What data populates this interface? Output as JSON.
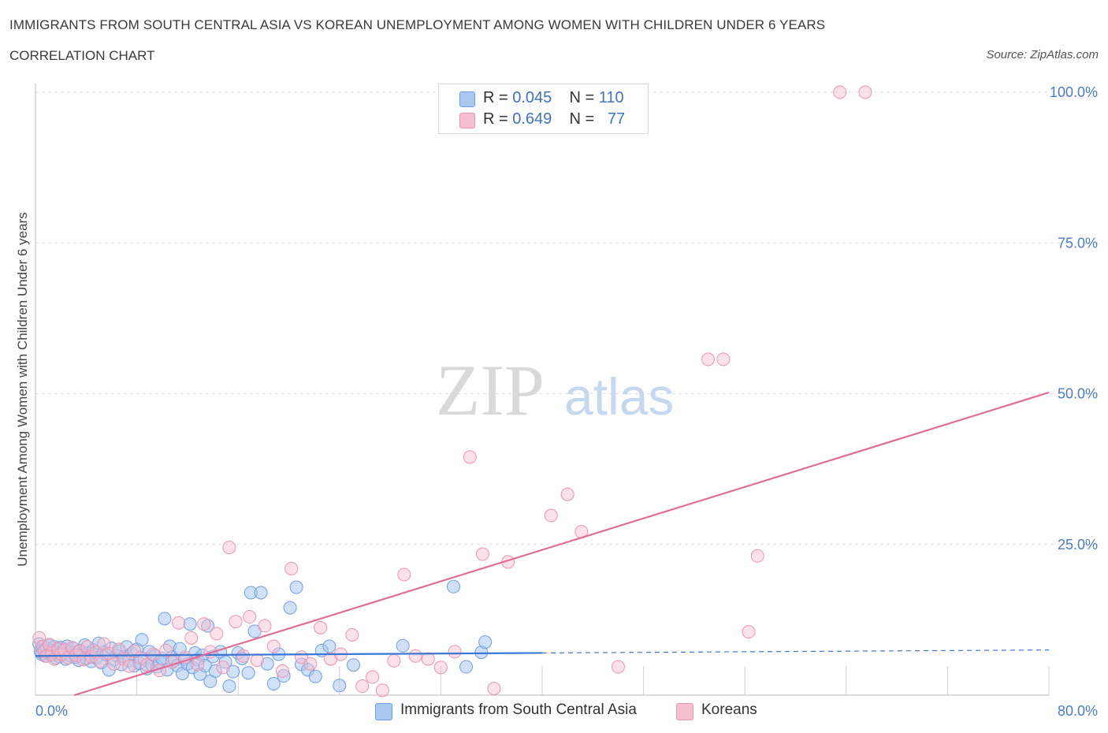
{
  "header": {
    "title": "IMMIGRANTS FROM SOUTH CENTRAL ASIA VS KOREAN UNEMPLOYMENT AMONG WOMEN WITH CHILDREN UNDER 6 YEARS",
    "subtitle": "CORRELATION CHART",
    "source": "Source: ZipAtlas.com"
  },
  "legend": {
    "r_label": "R =",
    "n_label": "N =",
    "rows": [
      {
        "r": "0.045",
        "n": "110"
      },
      {
        "r": "0.649",
        "n": "77"
      }
    ]
  },
  "watermark": {
    "zip": "ZIP",
    "atlas": "atlas"
  },
  "colors": {
    "blue_fill": "#a9c8f0",
    "blue_stroke": "#6e9fe0",
    "blue_line": "#3a78d4",
    "pink_fill": "#f6bfd0",
    "pink_stroke": "#ec93b0",
    "pink_line": "#e26b93",
    "tick_text": "#4a7cc9",
    "grid": "#e2e2e2"
  },
  "chart_data": {
    "type": "scatter",
    "title": "IMMIGRANTS FROM SOUTH CENTRAL ASIA VS KOREAN UNEMPLOYMENT AMONG WOMEN WITH CHILDREN UNDER 6 YEARS",
    "xlabel": "",
    "ylabel": "Unemployment Among Women with Children Under 6 years",
    "xlim": [
      0,
      80
    ],
    "ylim": [
      0,
      100
    ],
    "x_tick_labels": [
      "0.0%",
      "80.0%"
    ],
    "y_tick_values": [
      25,
      50,
      75,
      100
    ],
    "y_tick_labels": [
      "25.0%",
      "50.0%",
      "75.0%",
      "100.0%"
    ],
    "grid": "horizontal dashed",
    "legend_position": "top-center",
    "series": [
      {
        "name": "Immigrants from South Central Asia",
        "color": "#a9c8f0",
        "r": 0.045,
        "n": 110,
        "trend": {
          "x": [
            0,
            40
          ],
          "y": [
            6.5,
            7.0
          ],
          "dashed_extension_to_x": 80,
          "dashed_end_y": 7.5
        },
        "points": [
          [
            0.3,
            8.5
          ],
          [
            0.4,
            7.2
          ],
          [
            0.5,
            6.8
          ],
          [
            0.6,
            8.0
          ],
          [
            0.7,
            7.5
          ],
          [
            0.8,
            6.5
          ],
          [
            0.9,
            7.8
          ],
          [
            1.0,
            6.9
          ],
          [
            1.1,
            8.2
          ],
          [
            1.2,
            7.1
          ],
          [
            1.3,
            6.6
          ],
          [
            1.4,
            7.4
          ],
          [
            1.5,
            8.0
          ],
          [
            1.6,
            6.2
          ],
          [
            1.7,
            7.0
          ],
          [
            1.8,
            7.6
          ],
          [
            1.9,
            6.4
          ],
          [
            2.0,
            7.9
          ],
          [
            2.1,
            6.7
          ],
          [
            2.2,
            7.3
          ],
          [
            2.4,
            6.0
          ],
          [
            2.5,
            8.1
          ],
          [
            2.7,
            7.2
          ],
          [
            2.8,
            6.5
          ],
          [
            3.0,
            7.7
          ],
          [
            3.2,
            6.3
          ],
          [
            3.4,
            5.8
          ],
          [
            3.5,
            7.4
          ],
          [
            3.7,
            6.9
          ],
          [
            3.9,
            8.3
          ],
          [
            4.0,
            6.1
          ],
          [
            4.2,
            7.0
          ],
          [
            4.4,
            5.6
          ],
          [
            4.6,
            7.5
          ],
          [
            4.8,
            6.2
          ],
          [
            5.0,
            8.6
          ],
          [
            5.2,
            5.4
          ],
          [
            5.4,
            7.1
          ],
          [
            5.6,
            6.7
          ],
          [
            5.8,
            4.2
          ],
          [
            6.0,
            7.8
          ],
          [
            6.2,
            5.9
          ],
          [
            6.4,
            6.6
          ],
          [
            6.6,
            7.3
          ],
          [
            6.8,
            5.1
          ],
          [
            7.0,
            6.4
          ],
          [
            7.2,
            8.0
          ],
          [
            7.4,
            5.7
          ],
          [
            7.6,
            6.9
          ],
          [
            7.8,
            4.9
          ],
          [
            8.0,
            7.6
          ],
          [
            8.2,
            5.3
          ],
          [
            8.4,
            9.2
          ],
          [
            8.6,
            6.0
          ],
          [
            8.8,
            4.4
          ],
          [
            9.0,
            7.2
          ],
          [
            9.2,
            5.0
          ],
          [
            9.4,
            6.5
          ],
          [
            9.6,
            4.7
          ],
          [
            9.8,
            5.5
          ],
          [
            10.0,
            6.1
          ],
          [
            10.2,
            12.7
          ],
          [
            10.4,
            4.2
          ],
          [
            10.6,
            8.1
          ],
          [
            10.8,
            6.3
          ],
          [
            11.0,
            5.8
          ],
          [
            11.2,
            4.9
          ],
          [
            11.4,
            7.7
          ],
          [
            11.6,
            3.6
          ],
          [
            11.8,
            6.0
          ],
          [
            12.0,
            5.2
          ],
          [
            12.2,
            11.8
          ],
          [
            12.4,
            4.6
          ],
          [
            12.6,
            7.0
          ],
          [
            12.8,
            5.9
          ],
          [
            13.0,
            3.5
          ],
          [
            13.2,
            6.6
          ],
          [
            13.4,
            4.9
          ],
          [
            13.6,
            11.5
          ],
          [
            13.8,
            2.3
          ],
          [
            14.0,
            6.4
          ],
          [
            14.2,
            4.0
          ],
          [
            14.6,
            7.2
          ],
          [
            15.0,
            5.5
          ],
          [
            15.3,
            1.5
          ],
          [
            15.6,
            3.9
          ],
          [
            16.0,
            7.0
          ],
          [
            16.3,
            6.1
          ],
          [
            16.8,
            3.7
          ],
          [
            17.0,
            17.0
          ],
          [
            17.3,
            10.6
          ],
          [
            17.8,
            17.0
          ],
          [
            18.3,
            5.2
          ],
          [
            18.8,
            1.9
          ],
          [
            19.2,
            6.8
          ],
          [
            19.6,
            3.2
          ],
          [
            20.1,
            14.5
          ],
          [
            20.6,
            17.9
          ],
          [
            21.0,
            5.1
          ],
          [
            21.5,
            4.2
          ],
          [
            22.1,
            3.1
          ],
          [
            22.6,
            7.4
          ],
          [
            23.2,
            8.1
          ],
          [
            24.0,
            1.6
          ],
          [
            25.1,
            5.0
          ],
          [
            29.0,
            8.2
          ],
          [
            33.0,
            18.0
          ],
          [
            34.0,
            4.7
          ],
          [
            35.2,
            7.1
          ],
          [
            35.5,
            8.8
          ]
        ]
      },
      {
        "name": "Koreans",
        "color": "#f6bfd0",
        "r": 0.649,
        "n": 77,
        "trend": {
          "x": [
            0,
            80
          ],
          "y": [
            -2.0,
            50.2
          ]
        },
        "points": [
          [
            0.3,
            9.5
          ],
          [
            0.5,
            8.0
          ],
          [
            0.7,
            7.2
          ],
          [
            0.9,
            6.5
          ],
          [
            1.1,
            8.4
          ],
          [
            1.3,
            7.0
          ],
          [
            1.5,
            6.0
          ],
          [
            1.8,
            7.7
          ],
          [
            2.0,
            6.8
          ],
          [
            2.3,
            7.5
          ],
          [
            2.6,
            6.2
          ],
          [
            2.9,
            7.9
          ],
          [
            3.2,
            6.6
          ],
          [
            3.5,
            7.3
          ],
          [
            3.8,
            5.9
          ],
          [
            4.1,
            8.0
          ],
          [
            4.4,
            6.4
          ],
          [
            4.8,
            7.1
          ],
          [
            5.1,
            5.6
          ],
          [
            5.4,
            8.5
          ],
          [
            5.8,
            6.9
          ],
          [
            6.2,
            5.2
          ],
          [
            6.6,
            7.6
          ],
          [
            7.0,
            6.0
          ],
          [
            7.4,
            4.8
          ],
          [
            7.8,
            7.3
          ],
          [
            8.3,
            6.2
          ],
          [
            8.8,
            5.0
          ],
          [
            9.3,
            6.8
          ],
          [
            9.8,
            4.1
          ],
          [
            10.3,
            7.4
          ],
          [
            10.8,
            5.5
          ],
          [
            11.3,
            12.0
          ],
          [
            11.8,
            6.3
          ],
          [
            12.3,
            9.5
          ],
          [
            12.8,
            5.1
          ],
          [
            13.3,
            11.8
          ],
          [
            13.8,
            7.2
          ],
          [
            14.3,
            10.2
          ],
          [
            14.8,
            4.6
          ],
          [
            15.3,
            24.5
          ],
          [
            15.8,
            12.2
          ],
          [
            16.4,
            6.5
          ],
          [
            16.9,
            13.0
          ],
          [
            17.5,
            5.8
          ],
          [
            18.1,
            11.5
          ],
          [
            18.8,
            8.1
          ],
          [
            19.5,
            4.0
          ],
          [
            20.2,
            21.0
          ],
          [
            21.0,
            6.3
          ],
          [
            21.7,
            5.2
          ],
          [
            22.5,
            11.2
          ],
          [
            23.3,
            6.0
          ],
          [
            24.1,
            6.8
          ],
          [
            25.0,
            10.0
          ],
          [
            25.8,
            1.5
          ],
          [
            26.6,
            3.0
          ],
          [
            27.4,
            0.8
          ],
          [
            28.3,
            5.7
          ],
          [
            29.1,
            20.0
          ],
          [
            30.0,
            6.5
          ],
          [
            31.0,
            6.0
          ],
          [
            32.0,
            4.6
          ],
          [
            33.1,
            7.2
          ],
          [
            34.3,
            39.5
          ],
          [
            35.3,
            23.4
          ],
          [
            36.2,
            1.1
          ],
          [
            37.3,
            22.1
          ],
          [
            40.7,
            29.8
          ],
          [
            42.0,
            33.3
          ],
          [
            43.1,
            27.1
          ],
          [
            46.0,
            4.7
          ],
          [
            53.1,
            55.7
          ],
          [
            54.3,
            55.7
          ],
          [
            56.3,
            10.5
          ],
          [
            57.0,
            23.1
          ],
          [
            65.5,
            100
          ]
        ]
      }
    ],
    "extra_points_pink": [
      [
        63.5,
        100
      ]
    ]
  },
  "bottom_legend": {
    "items": [
      {
        "label": "Immigrants from South Central Asia"
      },
      {
        "label": "Koreans"
      }
    ]
  }
}
